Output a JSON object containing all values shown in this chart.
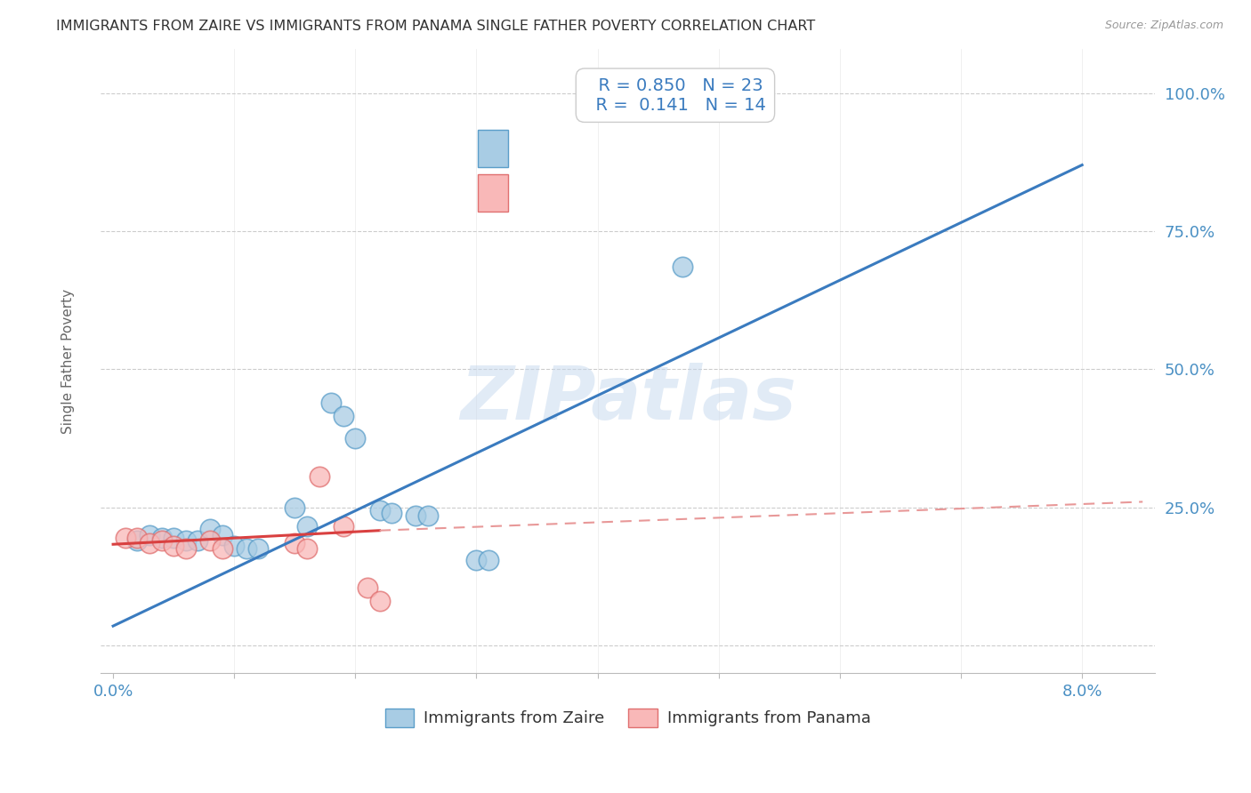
{
  "title": "IMMIGRANTS FROM ZAIRE VS IMMIGRANTS FROM PANAMA SINGLE FATHER POVERTY CORRELATION CHART",
  "source": "Source: ZipAtlas.com",
  "ylabel": "Single Father Poverty",
  "y_ticks": [
    0.0,
    0.25,
    0.5,
    0.75,
    1.0
  ],
  "y_tick_labels": [
    "",
    "25.0%",
    "50.0%",
    "75.0%",
    "100.0%"
  ],
  "x_ticks": [
    0.0,
    0.01,
    0.02,
    0.03,
    0.04,
    0.05,
    0.06,
    0.07,
    0.08
  ],
  "zaire_color": "#a8cce4",
  "panama_color": "#f9b8b8",
  "zaire_edge": "#5b9ec9",
  "panama_edge": "#e07070",
  "trend_zaire_color": "#3a7bbf",
  "trend_panama_color": "#d94040",
  "trend_panama_dash_color": "#e89898",
  "watermark_text": "ZIPatlas",
  "zaire_points": [
    [
      0.002,
      0.19
    ],
    [
      0.003,
      0.2
    ],
    [
      0.004,
      0.195
    ],
    [
      0.005,
      0.195
    ],
    [
      0.006,
      0.19
    ],
    [
      0.007,
      0.19
    ],
    [
      0.008,
      0.21
    ],
    [
      0.009,
      0.2
    ],
    [
      0.01,
      0.18
    ],
    [
      0.011,
      0.175
    ],
    [
      0.012,
      0.175
    ],
    [
      0.015,
      0.25
    ],
    [
      0.016,
      0.215
    ],
    [
      0.018,
      0.44
    ],
    [
      0.019,
      0.415
    ],
    [
      0.02,
      0.375
    ],
    [
      0.022,
      0.245
    ],
    [
      0.023,
      0.24
    ],
    [
      0.025,
      0.235
    ],
    [
      0.026,
      0.235
    ],
    [
      0.03,
      0.155
    ],
    [
      0.031,
      0.155
    ],
    [
      0.047,
      0.685
    ]
  ],
  "panama_points": [
    [
      0.001,
      0.195
    ],
    [
      0.002,
      0.195
    ],
    [
      0.003,
      0.185
    ],
    [
      0.004,
      0.19
    ],
    [
      0.005,
      0.18
    ],
    [
      0.006,
      0.175
    ],
    [
      0.008,
      0.19
    ],
    [
      0.009,
      0.175
    ],
    [
      0.015,
      0.185
    ],
    [
      0.016,
      0.175
    ],
    [
      0.017,
      0.305
    ],
    [
      0.019,
      0.215
    ],
    [
      0.021,
      0.105
    ],
    [
      0.022,
      0.08
    ]
  ],
  "zaire_trendline": {
    "x": [
      0.0,
      0.08
    ],
    "y": [
      0.035,
      0.87
    ]
  },
  "panama_trendline_solid": {
    "x": [
      0.0,
      0.022
    ],
    "y": [
      0.183,
      0.208
    ]
  },
  "panama_trendline_dash": {
    "x": [
      0.022,
      0.085
    ],
    "y": [
      0.208,
      0.26
    ]
  },
  "xlim": [
    -0.001,
    0.086
  ],
  "ylim": [
    -0.05,
    1.08
  ],
  "background": "#ffffff",
  "plot_bg": "#ffffff",
  "grid_color": "#cccccc",
  "title_color": "#333333",
  "axis_label_color": "#666666",
  "tick_color_x": "#4a90c4",
  "tick_color_y": "#4a90c4",
  "legend_label_zaire": "Immigrants from Zaire",
  "legend_label_panama": "Immigrants from Panama",
  "legend_r1": "R = 0.850",
  "legend_n1": "N = 23",
  "legend_r2": "R =  0.141",
  "legend_n2": "N = 14"
}
